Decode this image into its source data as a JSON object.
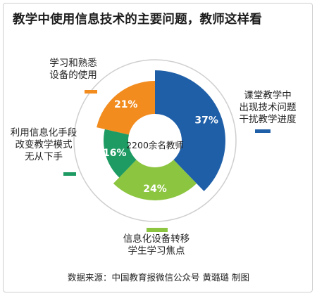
{
  "chart_data": {
    "type": "pie",
    "title": "教学中使用信息技术的主要问题，教师这样看",
    "center_label": "2200余名教师",
    "source": "数据来源：中国教育报微信公众号    黄璐璐    制图",
    "slices": [
      {
        "key": "s1",
        "value": 37,
        "value_label": "37%",
        "color": "#1f5fa8",
        "label_lines": [
          "课堂教学中",
          "出现技术问题",
          "干扰教学进度"
        ]
      },
      {
        "key": "s2",
        "value": 24,
        "value_label": "24%",
        "color": "#8cc53f",
        "label_lines": [
          "信息化设备转移",
          "学生学习焦点"
        ]
      },
      {
        "key": "s3",
        "value": 16,
        "value_label": "16%",
        "color": "#1e9b63",
        "label_lines": [
          "利用信息化手段",
          "改变教学模式",
          "无从下手"
        ]
      },
      {
        "key": "s4",
        "value": 21,
        "value_label": "21%",
        "color": "#f28c1f",
        "label_lines": [
          "学习和熟悉",
          "设备的使用"
        ]
      }
    ]
  }
}
